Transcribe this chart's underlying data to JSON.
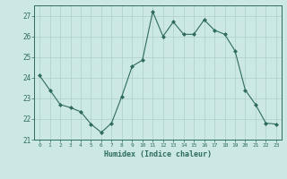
{
  "x": [
    0,
    1,
    2,
    3,
    4,
    5,
    6,
    7,
    8,
    9,
    10,
    11,
    12,
    13,
    14,
    15,
    16,
    17,
    18,
    19,
    20,
    21,
    22,
    23
  ],
  "y": [
    24.1,
    23.4,
    22.7,
    22.55,
    22.35,
    21.75,
    21.35,
    21.8,
    23.1,
    24.55,
    24.85,
    27.2,
    26.0,
    26.7,
    26.1,
    26.1,
    26.8,
    26.3,
    26.1,
    25.3,
    23.4,
    22.7,
    21.8,
    21.75
  ],
  "line_color": "#2e6b5e",
  "marker": "D",
  "marker_size": 2.0,
  "bg_color": "#cce8e4",
  "grid_color": "#aecfcb",
  "tick_color": "#2e6b5e",
  "label_color": "#2e6b5e",
  "xlabel": "Humidex (Indice chaleur)",
  "xlim": [
    -0.5,
    23.5
  ],
  "ylim": [
    21.0,
    27.5
  ],
  "yticks": [
    21,
    22,
    23,
    24,
    25,
    26,
    27
  ],
  "xticks": [
    0,
    1,
    2,
    3,
    4,
    5,
    6,
    7,
    8,
    9,
    10,
    11,
    12,
    13,
    14,
    15,
    16,
    17,
    18,
    19,
    20,
    21,
    22,
    23
  ],
  "xtick_labels": [
    "0",
    "1",
    "2",
    "3",
    "4",
    "5",
    "6",
    "7",
    "8",
    "9",
    "10",
    "11",
    "12",
    "13",
    "14",
    "15",
    "16",
    "17",
    "18",
    "19",
    "20",
    "21",
    "22",
    "23"
  ]
}
